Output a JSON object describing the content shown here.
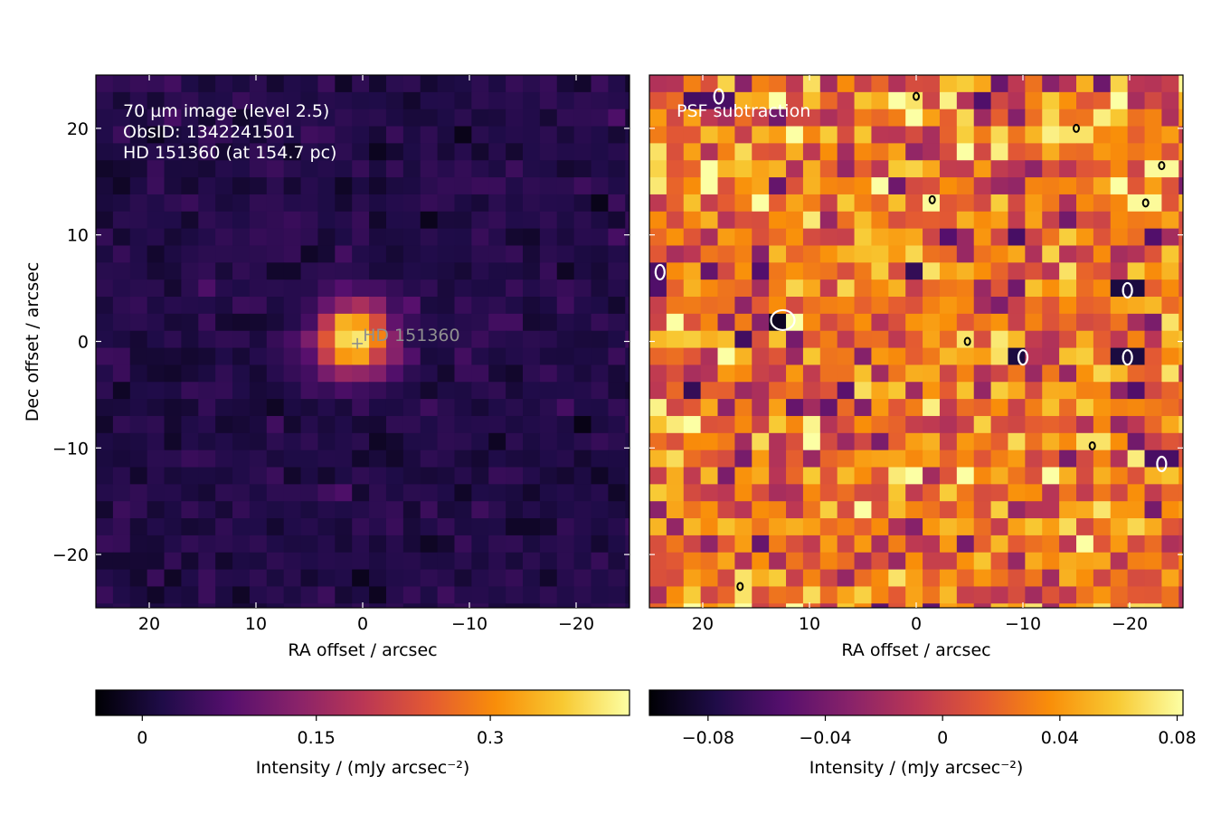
{
  "chart_data": [
    {
      "type": "heatmap",
      "panel": "left",
      "annotation_lines": [
        "70 µm image (level 2.5)",
        "ObsID: 1342241501",
        "HD 151360 (at 154.7 pc)"
      ],
      "source_label": "HD 151360",
      "source_marker": {
        "ra_offset": 0.5,
        "dec_offset": -0.2
      },
      "xlabel": "RA offset / arcsec",
      "ylabel": "Dec offset / arcsec",
      "xlim": [
        25,
        -25
      ],
      "ylim": [
        -25,
        25
      ],
      "xticks": [
        {
          "v": 20,
          "label": "20"
        },
        {
          "v": 10,
          "label": "10"
        },
        {
          "v": 0,
          "label": "0"
        },
        {
          "v": -10,
          "label": "−10"
        },
        {
          "v": -20,
          "label": "−20"
        }
      ],
      "yticks": [
        {
          "v": 20,
          "label": "20"
        },
        {
          "v": 10,
          "label": "10"
        },
        {
          "v": 0,
          "label": "0"
        },
        {
          "v": -10,
          "label": "−10"
        },
        {
          "v": -20,
          "label": "−20"
        }
      ],
      "colormap": "inferno",
      "grid_size": [
        32,
        32
      ],
      "pixel_scale_arcsec": 1.6,
      "peak": {
        "ra_offset": 0.8,
        "dec_offset": 0.2,
        "value": 0.41,
        "fwhm_arcsec": 5.5
      },
      "background_mean": 0.02,
      "noise_rms": 0.015,
      "colorbar": {
        "vmin": -0.04,
        "vmax": 0.42,
        "ticks": [
          {
            "v": 0,
            "label": "0"
          },
          {
            "v": 0.15,
            "label": "0.15"
          },
          {
            "v": 0.3,
            "label": "0.3"
          }
        ],
        "label": "Intensity / (mJy arcsec⁻²)"
      },
      "grid": false
    },
    {
      "type": "heatmap",
      "panel": "right",
      "annotation_lines": [
        "PSF subtraction"
      ],
      "xlabel": "RA offset / arcsec",
      "xlim": [
        25,
        -25
      ],
      "ylim": [
        -25,
        25
      ],
      "xticks": [
        {
          "v": 20,
          "label": "20"
        },
        {
          "v": 10,
          "label": "10"
        },
        {
          "v": 0,
          "label": "0"
        },
        {
          "v": -10,
          "label": "−10"
        },
        {
          "v": -20,
          "label": "−20"
        }
      ],
      "colormap": "inferno",
      "grid_size": [
        32,
        32
      ],
      "pixel_scale_arcsec": 1.6,
      "residual_mean": 0.02,
      "noise_rms": 0.03,
      "negative_features": [
        {
          "ra_offset": 12.5,
          "dec_offset": 2.0,
          "value": -0.09
        },
        {
          "ra_offset": -10.0,
          "dec_offset": -1.5,
          "value": -0.08
        },
        {
          "ra_offset": -19.8,
          "dec_offset": -1.5,
          "value": -0.08
        },
        {
          "ra_offset": -19.8,
          "dec_offset": 4.8,
          "value": -0.08
        },
        {
          "ra_offset": 24.0,
          "dec_offset": 6.5,
          "value": -0.06
        },
        {
          "ra_offset": -23.0,
          "dec_offset": -11.5,
          "value": -0.06
        },
        {
          "ra_offset": 18.5,
          "dec_offset": 23.0,
          "value": -0.06
        }
      ],
      "positive_features": [
        {
          "ra_offset": 16.5,
          "dec_offset": -23.0,
          "value": 0.07
        },
        {
          "ra_offset": 0.0,
          "dec_offset": 23.0,
          "value": 0.07
        },
        {
          "ra_offset": -15.0,
          "dec_offset": 20.0,
          "value": 0.07
        },
        {
          "ra_offset": -23.0,
          "dec_offset": 16.5,
          "value": 0.08
        },
        {
          "ra_offset": -1.5,
          "dec_offset": 13.3,
          "value": 0.08
        },
        {
          "ra_offset": -21.5,
          "dec_offset": 13.0,
          "value": 0.08
        },
        {
          "ra_offset": -4.8,
          "dec_offset": 0.0,
          "value": 0.07
        },
        {
          "ra_offset": -16.5,
          "dec_offset": -9.8,
          "value": 0.07
        }
      ],
      "colorbar": {
        "vmin": -0.1,
        "vmax": 0.082,
        "ticks": [
          {
            "v": -0.08,
            "label": "−0.08"
          },
          {
            "v": -0.04,
            "label": "−0.04"
          },
          {
            "v": 0,
            "label": "0"
          },
          {
            "v": 0.04,
            "label": "0.04"
          },
          {
            "v": 0.08,
            "label": "0.08"
          }
        ],
        "label": "Intensity / (mJy arcsec⁻²)"
      },
      "grid": false
    }
  ]
}
